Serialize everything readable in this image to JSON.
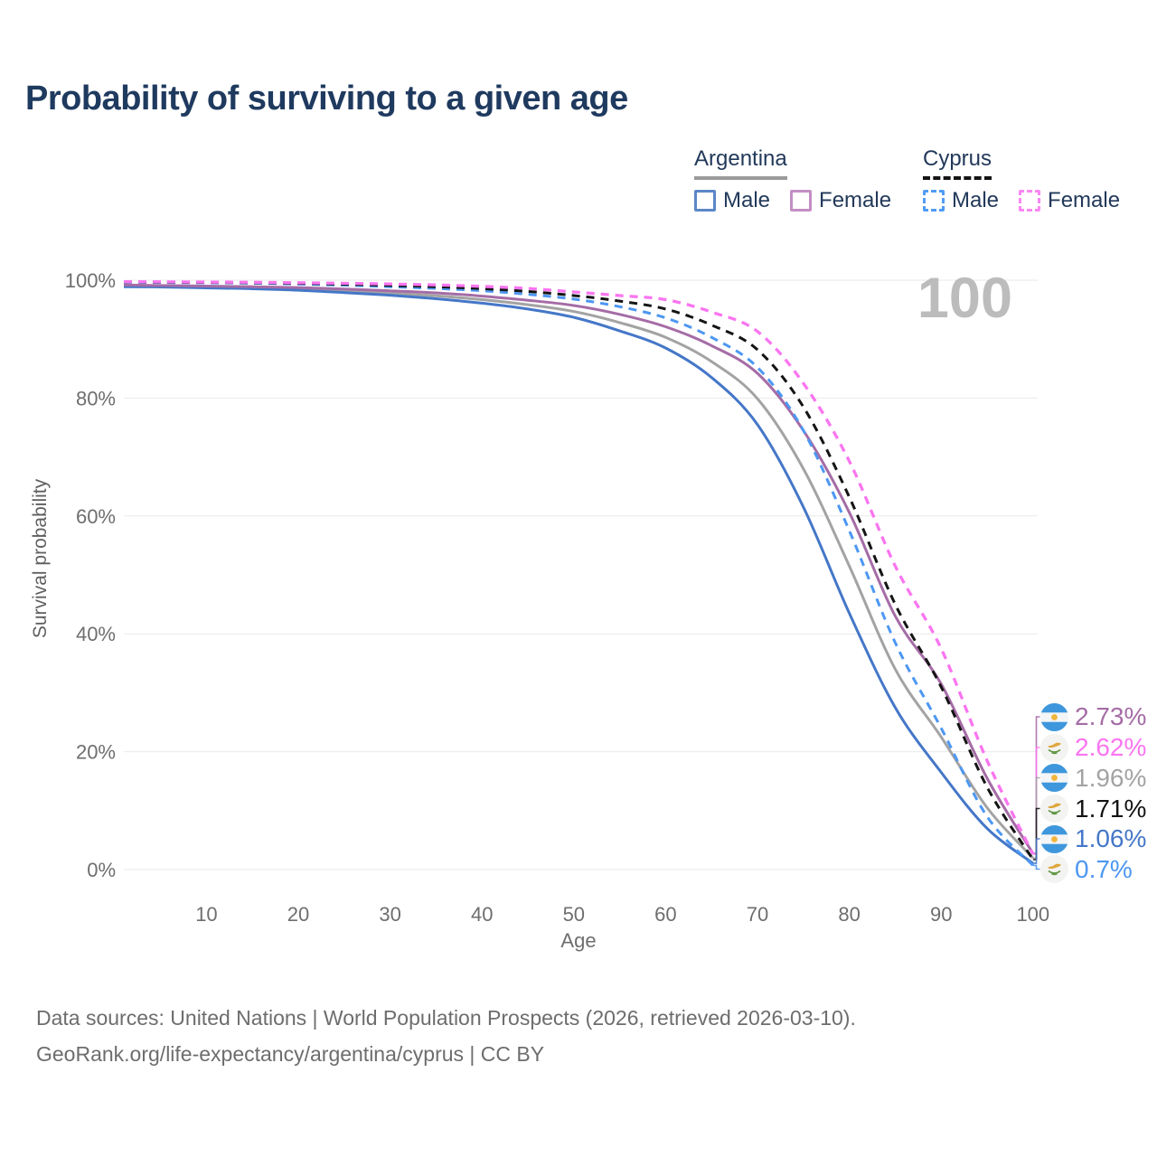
{
  "title": "Probability of surviving to a given age",
  "legend": {
    "groups": [
      {
        "country": "Argentina",
        "line_style": "solid",
        "underline_color": "#9a9a9a",
        "items": [
          {
            "label": "Male",
            "swatch_color": "#5b87c7",
            "swatch_style": "solid"
          },
          {
            "label": "Female",
            "swatch_color": "#c48ec4",
            "swatch_style": "solid"
          }
        ]
      },
      {
        "country": "Cyprus",
        "line_style": "dashed",
        "underline_color": "#141414",
        "items": [
          {
            "label": "Male",
            "swatch_color": "#4f9cf5",
            "swatch_style": "dashed"
          },
          {
            "label": "Female",
            "swatch_color": "#fb87f3",
            "swatch_style": "dashed"
          }
        ]
      }
    ]
  },
  "chart_data": {
    "type": "line",
    "title": "Probability of surviving to a given age",
    "xlabel": "Age",
    "ylabel": "Survival probability",
    "xlim": [
      1,
      100
    ],
    "ylim": [
      0,
      100
    ],
    "xticks": [
      10,
      20,
      30,
      40,
      50,
      60,
      70,
      80,
      90,
      100
    ],
    "yticks": [
      0,
      20,
      40,
      60,
      80,
      100
    ],
    "ytick_labels": [
      "0%",
      "20%",
      "40%",
      "60%",
      "80%",
      "100%"
    ],
    "grid": "horizontal",
    "legend_position": "top-right",
    "age_counter": "100",
    "x": [
      1,
      5,
      10,
      15,
      20,
      25,
      30,
      35,
      40,
      45,
      50,
      55,
      60,
      65,
      70,
      75,
      80,
      85,
      90,
      95,
      100
    ],
    "series": [
      {
        "name": "Argentina Both sexes",
        "country": "Argentina",
        "group": "total",
        "color": "#a3a3a3",
        "line": "solid",
        "end_label": "1.96%",
        "values": [
          99.05,
          98.95,
          98.85,
          98.7,
          98.5,
          98.2,
          97.8,
          97.35,
          96.7,
          95.85,
          94.7,
          92.8,
          90.3,
          86.2,
          79.9,
          68.0,
          51.5,
          34.0,
          22.5,
          10.5,
          1.96
        ]
      },
      {
        "name": "Argentina Male",
        "country": "Argentina",
        "group": "male",
        "color": "#4577c8",
        "line": "solid",
        "end_label": "1.06%",
        "values": [
          98.9,
          98.85,
          98.7,
          98.55,
          98.3,
          97.9,
          97.45,
          96.85,
          96.1,
          95.1,
          93.7,
          91.4,
          88.5,
          83.5,
          75.5,
          61.5,
          43.5,
          27.5,
          16.5,
          7.0,
          1.06
        ]
      },
      {
        "name": "Argentina Female",
        "country": "Argentina",
        "group": "female",
        "color": "#a56ca6",
        "line": "solid",
        "end_label": "2.73%",
        "values": [
          99.2,
          99.1,
          99.0,
          98.9,
          98.75,
          98.5,
          98.2,
          97.85,
          97.3,
          96.6,
          95.7,
          94.2,
          92.1,
          88.9,
          84.2,
          74.5,
          60.6,
          43.0,
          31.5,
          15.5,
          2.73
        ]
      },
      {
        "name": "Cyprus Male",
        "country": "Cyprus",
        "group": "male",
        "color": "#4d97f2",
        "line": "dashed",
        "end_label": "0.7%",
        "values": [
          99.65,
          99.6,
          99.55,
          99.5,
          99.35,
          99.15,
          98.9,
          98.6,
          98.2,
          97.6,
          96.8,
          95.5,
          93.6,
          90.3,
          85.2,
          74.5,
          57.5,
          38.5,
          24.0,
          9.0,
          0.7
        ]
      },
      {
        "name": "Cyprus Both sexes",
        "country": "Cyprus",
        "group": "total",
        "color": "#141414",
        "line": "dashed",
        "end_label": "1.71%",
        "values": [
          99.7,
          99.66,
          99.62,
          99.57,
          99.46,
          99.32,
          99.12,
          98.9,
          98.57,
          98.1,
          97.4,
          96.45,
          95.1,
          92.4,
          88.2,
          78.5,
          63.2,
          45.0,
          31.0,
          14.0,
          1.71
        ]
      },
      {
        "name": "Cyprus Female",
        "country": "Cyprus",
        "group": "female",
        "color": "#fa75f0",
        "line": "dashed",
        "end_label": "2.62%",
        "values": [
          99.75,
          99.72,
          99.68,
          99.64,
          99.57,
          99.48,
          99.35,
          99.2,
          98.95,
          98.6,
          98.0,
          97.4,
          96.7,
          94.6,
          91.3,
          82.5,
          69.3,
          51.5,
          37.5,
          18.5,
          2.62
        ]
      }
    ]
  },
  "footer": {
    "line1": "Data sources: United Nations | World Population Prospects (2026, retrieved 2026-03-10).",
    "line2": "GeoRank.org/life-expectancy/argentina/cyprus | CC BY"
  }
}
